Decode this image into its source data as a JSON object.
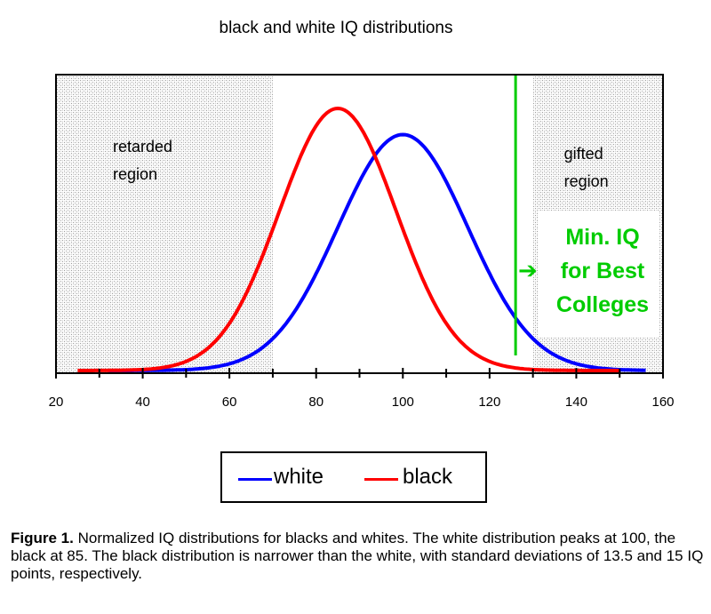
{
  "chart_data": {
    "type": "line",
    "title": "black and white IQ distributions",
    "xlabel": "",
    "ylabel": "",
    "xlim": [
      20,
      160
    ],
    "xticks": [
      20,
      40,
      60,
      80,
      100,
      120,
      140,
      160
    ],
    "series": [
      {
        "name": "white",
        "color": "#0000ff",
        "mean": 100,
        "sd": 15,
        "x_range": [
          32,
          156
        ]
      },
      {
        "name": "black",
        "color": "#ff0000",
        "mean": 85,
        "sd": 13.5,
        "x_range": [
          25,
          150
        ]
      }
    ],
    "shaded_regions": [
      {
        "label_line1": "retarded",
        "label_line2": "region",
        "x_range": [
          20,
          70
        ]
      },
      {
        "label_line1": "gifted",
        "label_line2": "region",
        "x_range": [
          130,
          160
        ]
      }
    ],
    "threshold": {
      "x": 126,
      "color": "#00cc00",
      "arrow": "➔",
      "label_lines": [
        "Min. IQ",
        "for Best",
        "Colleges"
      ]
    }
  },
  "legend": {
    "items": [
      {
        "label": "white",
        "color": "#0000ff"
      },
      {
        "label": "black",
        "color": "#ff0000"
      }
    ]
  },
  "caption": {
    "bold": "Figure 1.",
    "text": "Normalized IQ distributions for blacks and whites. The white distribution peaks at 100, the black at 85. The black distribution is narrower than the white, with standard deviations of 13.5 and 15 IQ points, respectively."
  }
}
